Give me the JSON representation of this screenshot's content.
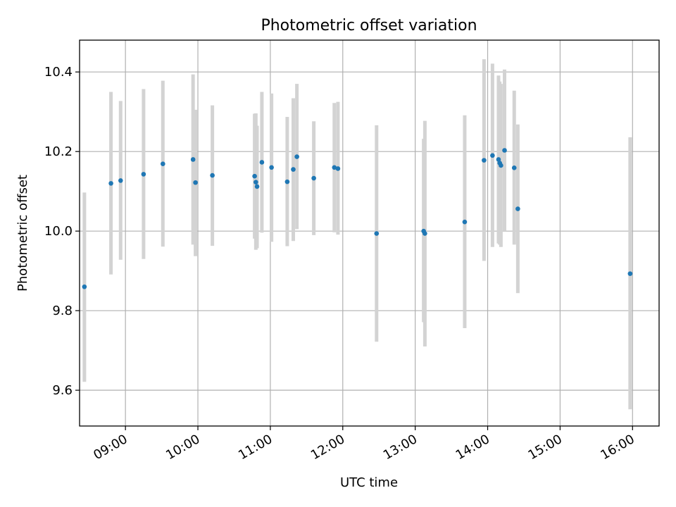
{
  "chart_data": {
    "type": "scatter",
    "title": "Photometric offset variation",
    "xlabel": "UTC time",
    "ylabel": "Photometric offset",
    "x_format": "HH:MM",
    "xlim": [
      "08:22",
      "16:22"
    ],
    "ylim": [
      9.51,
      10.48
    ],
    "grid": true,
    "x_ticks": [
      "09:00",
      "10:00",
      "11:00",
      "12:00",
      "13:00",
      "14:00",
      "15:00",
      "16:00"
    ],
    "y_ticks": [
      9.6,
      9.8,
      10.0,
      10.2,
      10.4
    ],
    "y_tick_labels": [
      "9.6",
      "9.8",
      "10.0",
      "10.2",
      "10.4"
    ],
    "point_color": "#1f77b4",
    "errorbar_color": "#d3d3d3",
    "points": [
      {
        "x": "08:26",
        "y": 9.86,
        "ylo": 9.621,
        "yhi": 10.097
      },
      {
        "x": "08:48",
        "y": 10.12,
        "ylo": 9.891,
        "yhi": 10.35
      },
      {
        "x": "08:56",
        "y": 10.127,
        "ylo": 9.928,
        "yhi": 10.327
      },
      {
        "x": "09:15",
        "y": 10.143,
        "ylo": 9.93,
        "yhi": 10.357
      },
      {
        "x": "09:31",
        "y": 10.169,
        "ylo": 9.961,
        "yhi": 10.378
      },
      {
        "x": "09:56",
        "y": 10.18,
        "ylo": 9.966,
        "yhi": 10.394
      },
      {
        "x": "09:58",
        "y": 10.122,
        "ylo": 9.937,
        "yhi": 10.305
      },
      {
        "x": "10:12",
        "y": 10.14,
        "ylo": 9.963,
        "yhi": 10.316
      },
      {
        "x": "10:47",
        "y": 10.138,
        "ylo": 9.981,
        "yhi": 10.295
      },
      {
        "x": "10:48",
        "y": 10.123,
        "ylo": 9.953,
        "yhi": 10.296
      },
      {
        "x": "10:49",
        "y": 10.112,
        "ylo": 9.957,
        "yhi": 10.265
      },
      {
        "x": "10:53",
        "y": 10.173,
        "ylo": 9.996,
        "yhi": 10.35
      },
      {
        "x": "11:01",
        "y": 10.16,
        "ylo": 9.973,
        "yhi": 10.346
      },
      {
        "x": "11:14",
        "y": 10.124,
        "ylo": 9.962,
        "yhi": 10.287
      },
      {
        "x": "11:19",
        "y": 10.155,
        "ylo": 9.975,
        "yhi": 10.334
      },
      {
        "x": "11:22",
        "y": 10.187,
        "ylo": 10.005,
        "yhi": 10.37
      },
      {
        "x": "11:36",
        "y": 10.133,
        "ylo": 9.99,
        "yhi": 10.276
      },
      {
        "x": "11:53",
        "y": 10.16,
        "ylo": 9.997,
        "yhi": 10.322
      },
      {
        "x": "11:56",
        "y": 10.157,
        "ylo": 9.991,
        "yhi": 10.325
      },
      {
        "x": "12:28",
        "y": 9.994,
        "ylo": 9.722,
        "yhi": 10.266
      },
      {
        "x": "13:07",
        "y": 10.0,
        "ylo": 9.771,
        "yhi": 10.232
      },
      {
        "x": "13:08",
        "y": 9.994,
        "ylo": 9.71,
        "yhi": 10.277
      },
      {
        "x": "13:41",
        "y": 10.023,
        "ylo": 9.756,
        "yhi": 10.291
      },
      {
        "x": "13:57",
        "y": 10.178,
        "ylo": 9.925,
        "yhi": 10.432
      },
      {
        "x": "14:04",
        "y": 10.19,
        "ylo": 9.96,
        "yhi": 10.421
      },
      {
        "x": "14:09",
        "y": 10.18,
        "ylo": 9.969,
        "yhi": 10.391
      },
      {
        "x": "14:10",
        "y": 10.171,
        "ylo": 9.966,
        "yhi": 10.376
      },
      {
        "x": "14:11",
        "y": 10.165,
        "ylo": 9.96,
        "yhi": 10.37
      },
      {
        "x": "14:14",
        "y": 10.203,
        "ylo": 10.0,
        "yhi": 10.406
      },
      {
        "x": "14:22",
        "y": 10.159,
        "ylo": 9.966,
        "yhi": 10.353
      },
      {
        "x": "14:25",
        "y": 10.056,
        "ylo": 9.844,
        "yhi": 10.268
      },
      {
        "x": "15:58",
        "y": 9.893,
        "ylo": 9.552,
        "yhi": 10.236
      }
    ]
  }
}
